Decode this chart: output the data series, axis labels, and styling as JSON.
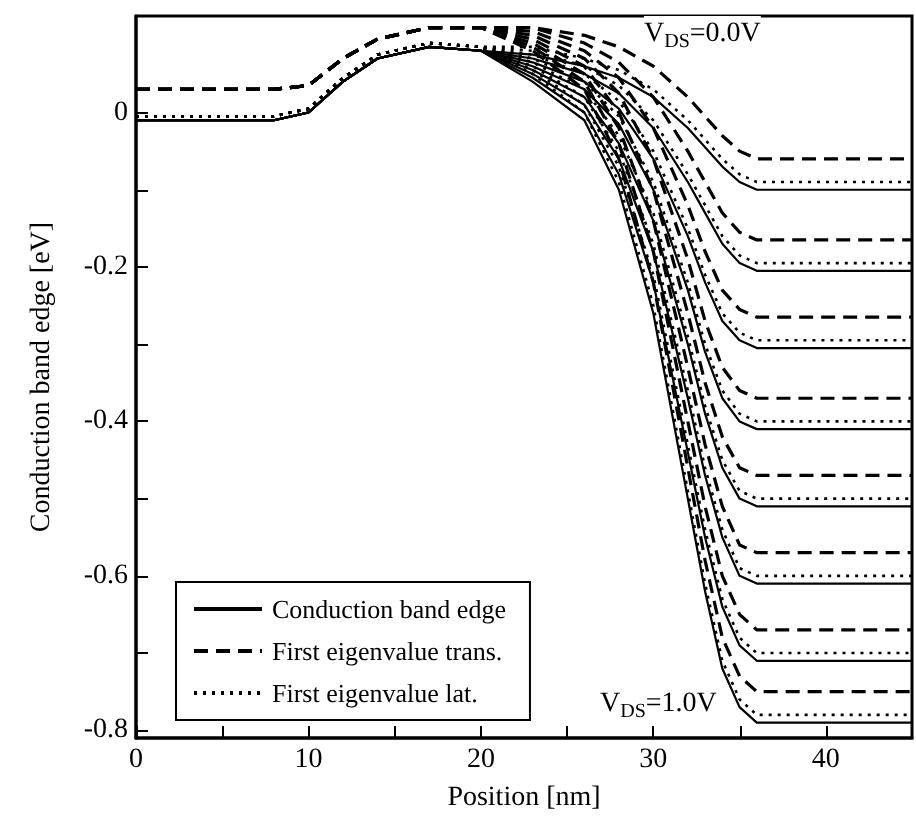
{
  "chart_data": {
    "type": "line",
    "xlabel": "Position [nm]",
    "ylabel": "Conduction band edge [eV]",
    "x": [
      0,
      8,
      10,
      12,
      14,
      17,
      20,
      23,
      26,
      28,
      30,
      32,
      33,
      34,
      35,
      36,
      45
    ],
    "xlim": [
      0,
      45
    ],
    "xticks": [
      0,
      {
        "value": 5,
        "label": null
      },
      10,
      {
        "value": 15,
        "label": null
      },
      20,
      {
        "value": 25,
        "label": null
      },
      30,
      {
        "value": 35,
        "label": null
      },
      40
    ],
    "ylim": [
      -0.81,
      0.125
    ],
    "yticks": [
      0,
      {
        "value": -0.1,
        "label": null
      },
      -0.2,
      {
        "value": -0.3,
        "label": null
      },
      -0.4,
      {
        "value": -0.5,
        "label": null
      },
      -0.6,
      {
        "value": -0.7,
        "label": null
      },
      -0.8
    ],
    "grid": false,
    "legend": "bottom left",
    "marker": "none",
    "annotations": [
      "V$_{DS}$=0.0V",
      "V$_{DS}$=1.0V"
    ],
    "series": [
      {
        "name": "Conduction band edge",
        "color": "#000000",
        "line_style": "solid",
        "values": [
          -0.01,
          -0.01,
          0,
          0.04,
          0.07,
          0.085,
          0.08,
          0.075,
          0.06,
          0.045,
          0.02,
          -0.02,
          -0.045,
          -0.07,
          -0.09,
          -0.1,
          -0.1
        ]
      },
      {
        "color": "#000000",
        "line_style": "solid",
        "values": [
          -0.01,
          -0.01,
          0,
          0.04,
          0.07,
          0.085,
          0.08,
          0.07,
          0.05,
          0.025,
          -0.02,
          -0.09,
          -0.13,
          -0.17,
          -0.195,
          -0.205,
          -0.205
        ]
      },
      {
        "color": "#000000",
        "line_style": "solid",
        "values": [
          -0.01,
          -0.01,
          0,
          0.04,
          0.07,
          0.085,
          0.08,
          0.065,
          0.04,
          0.005,
          -0.06,
          -0.16,
          -0.22,
          -0.27,
          -0.295,
          -0.305,
          -0.305
        ]
      },
      {
        "color": "#000000",
        "line_style": "solid",
        "values": [
          -0.01,
          -0.01,
          0,
          0.04,
          0.07,
          0.085,
          0.08,
          0.06,
          0.03,
          -0.015,
          -0.1,
          -0.23,
          -0.31,
          -0.37,
          -0.4,
          -0.41,
          -0.41
        ]
      },
      {
        "color": "#000000",
        "line_style": "solid",
        "values": [
          -0.01,
          -0.01,
          0,
          0.04,
          0.07,
          0.085,
          0.08,
          0.055,
          0.02,
          -0.04,
          -0.14,
          -0.3,
          -0.39,
          -0.46,
          -0.5,
          -0.51,
          -0.51
        ]
      },
      {
        "color": "#000000",
        "line_style": "solid",
        "values": [
          -0.01,
          -0.01,
          0,
          0.04,
          0.07,
          0.085,
          0.08,
          0.05,
          0.01,
          -0.06,
          -0.18,
          -0.37,
          -0.47,
          -0.55,
          -0.6,
          -0.61,
          -0.61
        ]
      },
      {
        "color": "#000000",
        "line_style": "solid",
        "values": [
          -0.01,
          -0.01,
          0,
          0.04,
          0.07,
          0.085,
          0.08,
          0.045,
          0,
          -0.08,
          -0.22,
          -0.44,
          -0.55,
          -0.64,
          -0.69,
          -0.71,
          -0.71
        ]
      },
      {
        "color": "#000000",
        "line_style": "solid",
        "values": [
          -0.01,
          -0.01,
          0,
          0.04,
          0.07,
          0.085,
          0.08,
          0.04,
          -0.01,
          -0.1,
          -0.26,
          -0.5,
          -0.62,
          -0.72,
          -0.77,
          -0.79,
          -0.79
        ]
      },
      {
        "name": "First eigenvalue trans.",
        "color": "#000000",
        "line_style": "dashed",
        "values": [
          0.03,
          0.03,
          0.035,
          0.07,
          0.095,
          0.11,
          0.11,
          0.11,
          0.1,
          0.085,
          0.06,
          0.02,
          -0.005,
          -0.03,
          -0.05,
          -0.06,
          -0.06
        ]
      },
      {
        "color": "#000000",
        "line_style": "dashed",
        "values": [
          0.03,
          0.03,
          0.035,
          0.07,
          0.095,
          0.11,
          0.11,
          0.11,
          0.09,
          0.065,
          0.02,
          -0.05,
          -0.09,
          -0.13,
          -0.155,
          -0.165,
          -0.165
        ]
      },
      {
        "color": "#000000",
        "line_style": "dashed",
        "values": [
          0.03,
          0.03,
          0.035,
          0.07,
          0.095,
          0.11,
          0.11,
          0.105,
          0.08,
          0.045,
          -0.02,
          -0.12,
          -0.18,
          -0.23,
          -0.255,
          -0.265,
          -0.265
        ]
      },
      {
        "color": "#000000",
        "line_style": "dashed",
        "values": [
          0.03,
          0.03,
          0.035,
          0.07,
          0.095,
          0.11,
          0.11,
          0.1,
          0.07,
          0.025,
          -0.06,
          -0.19,
          -0.27,
          -0.33,
          -0.36,
          -0.37,
          -0.37
        ]
      },
      {
        "color": "#000000",
        "line_style": "dashed",
        "values": [
          0.03,
          0.03,
          0.035,
          0.07,
          0.095,
          0.11,
          0.11,
          0.095,
          0.06,
          0,
          -0.1,
          -0.26,
          -0.35,
          -0.42,
          -0.46,
          -0.47,
          -0.47
        ]
      },
      {
        "color": "#000000",
        "line_style": "dashed",
        "values": [
          0.03,
          0.03,
          0.035,
          0.07,
          0.095,
          0.11,
          0.11,
          0.09,
          0.05,
          -0.02,
          -0.14,
          -0.33,
          -0.43,
          -0.51,
          -0.56,
          -0.57,
          -0.57
        ]
      },
      {
        "color": "#000000",
        "line_style": "dashed",
        "values": [
          0.03,
          0.03,
          0.035,
          0.07,
          0.095,
          0.11,
          0.11,
          0.085,
          0.04,
          -0.04,
          -0.18,
          -0.4,
          -0.51,
          -0.6,
          -0.65,
          -0.67,
          -0.67
        ]
      },
      {
        "color": "#000000",
        "line_style": "dashed",
        "values": [
          0.03,
          0.03,
          0.035,
          0.07,
          0.095,
          0.11,
          0.11,
          0.08,
          0.03,
          -0.06,
          -0.22,
          -0.46,
          -0.58,
          -0.68,
          -0.73,
          -0.75,
          -0.75
        ]
      },
      {
        "name": "First eigenvalue lat.",
        "color": "#000000",
        "line_style": "dotted",
        "values": [
          -0.005,
          -0.005,
          0.005,
          0.045,
          0.075,
          0.09,
          0.085,
          0.085,
          0.07,
          0.055,
          0.03,
          -0.01,
          -0.035,
          -0.06,
          -0.08,
          -0.09,
          -0.09
        ]
      },
      {
        "color": "#000000",
        "line_style": "dotted",
        "values": [
          -0.005,
          -0.005,
          0.005,
          0.045,
          0.075,
          0.09,
          0.085,
          0.08,
          0.06,
          0.035,
          -0.01,
          -0.08,
          -0.12,
          -0.16,
          -0.185,
          -0.195,
          -0.195
        ]
      },
      {
        "color": "#000000",
        "line_style": "dotted",
        "values": [
          -0.005,
          -0.005,
          0.005,
          0.045,
          0.075,
          0.09,
          0.085,
          0.075,
          0.05,
          0.015,
          -0.05,
          -0.15,
          -0.21,
          -0.26,
          -0.285,
          -0.295,
          -0.295
        ]
      },
      {
        "color": "#000000",
        "line_style": "dotted",
        "values": [
          -0.005,
          -0.005,
          0.005,
          0.045,
          0.075,
          0.09,
          0.085,
          0.07,
          0.04,
          -0.005,
          -0.09,
          -0.22,
          -0.3,
          -0.36,
          -0.39,
          -0.4,
          -0.4
        ]
      },
      {
        "color": "#000000",
        "line_style": "dotted",
        "values": [
          -0.005,
          -0.005,
          0.005,
          0.045,
          0.075,
          0.09,
          0.085,
          0.065,
          0.03,
          -0.03,
          -0.13,
          -0.29,
          -0.38,
          -0.45,
          -0.49,
          -0.5,
          -0.5
        ]
      },
      {
        "color": "#000000",
        "line_style": "dotted",
        "values": [
          -0.005,
          -0.005,
          0.005,
          0.045,
          0.075,
          0.09,
          0.085,
          0.06,
          0.02,
          -0.05,
          -0.17,
          -0.36,
          -0.46,
          -0.54,
          -0.59,
          -0.6,
          -0.6
        ]
      },
      {
        "color": "#000000",
        "line_style": "dotted",
        "values": [
          -0.005,
          -0.005,
          0.005,
          0.045,
          0.075,
          0.09,
          0.085,
          0.055,
          0.01,
          -0.07,
          -0.21,
          -0.43,
          -0.54,
          -0.63,
          -0.68,
          -0.7,
          -0.7
        ]
      },
      {
        "color": "#000000",
        "line_style": "dotted",
        "values": [
          -0.005,
          -0.005,
          0.005,
          0.045,
          0.075,
          0.09,
          0.085,
          0.05,
          0,
          -0.09,
          -0.25,
          -0.49,
          -0.61,
          -0.71,
          -0.76,
          -0.78,
          -0.78
        ]
      }
    ]
  }
}
